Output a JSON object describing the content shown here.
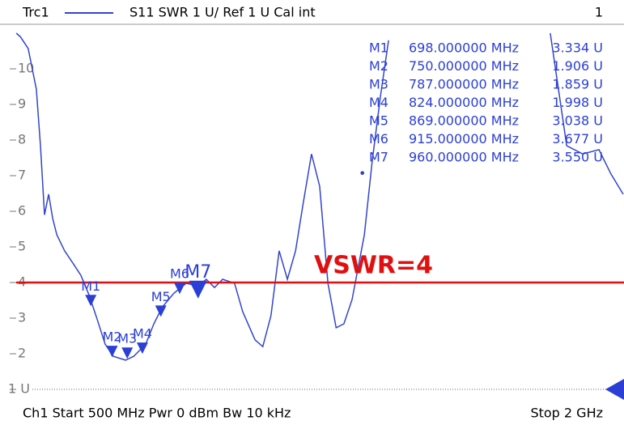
{
  "chart_data": {
    "type": "line",
    "header": {
      "trace": "Trc1",
      "description": "S11  SWR  1 U/ Ref 1 U  Cal int",
      "channel": "1"
    },
    "footer": {
      "left": "Ch1  Start  500 MHz  Pwr  0 dBm  Bw  10 kHz",
      "right": "Stop  2 GHz"
    },
    "xlim": [
      500,
      2000
    ],
    "ylim": [
      1,
      11
    ],
    "yticks": [
      {
        "value": 1,
        "label": "1 U"
      },
      2,
      3,
      4,
      5,
      6,
      7,
      8,
      9,
      10
    ],
    "series": [
      {
        "name": "Trc1",
        "color": "#3344cc",
        "x": [
          516,
          526,
          545,
          565,
          575,
          585,
          595,
          605,
          615,
          634,
          654,
          674,
          694,
          714,
          733,
          753,
          783,
          803,
          832,
          852,
          872,
          901,
          931,
          960,
          980,
          1000,
          1020,
          1049,
          1069,
          1099,
          1118,
          1138,
          1158,
          1178,
          1198,
          1217,
          1237,
          1257,
          1277,
          1297,
          1316,
          1336,
          1366,
          1385,
          1405,
          1425,
          1600,
          1820,
          1840,
          1860,
          1899,
          1939,
          1968,
          1998
        ],
        "values": [
          11,
          10.9,
          10.57,
          9.43,
          7.84,
          5.9,
          6.48,
          5.8,
          5.34,
          4.89,
          4.55,
          4.2,
          3.64,
          2.95,
          2.27,
          1.93,
          1.82,
          1.93,
          2.27,
          2.84,
          3.3,
          3.7,
          3.98,
          3.9,
          4.09,
          3.86,
          4.09,
          3.98,
          3.18,
          2.39,
          2.2,
          3.07,
          4.89,
          4.09,
          4.89,
          6.25,
          7.61,
          6.7,
          3.98,
          2.73,
          2.84,
          3.52,
          5.34,
          7.39,
          9.2,
          10.8,
          null,
          11,
          9.43,
          7.84,
          7.61,
          7.73,
          7.05,
          6.48
        ]
      }
    ],
    "markers": {
      "color": "#2b3fd6",
      "names": [
        "M1",
        "M2",
        "M3",
        "M4",
        "M5",
        "M6",
        "M7"
      ],
      "x": [
        698,
        750,
        787,
        824,
        869,
        915,
        960
      ],
      "x_labels": [
        "698.000000 MHz",
        "750.000000 MHz",
        "787.000000 MHz",
        "824.000000 MHz",
        "869.000000 MHz",
        "915.000000 MHz",
        "960.000000 MHz"
      ],
      "values": [
        3.334,
        1.906,
        1.859,
        1.998,
        3.038,
        3.677,
        3.55
      ],
      "value_labels": [
        "3.334 U",
        "1.906 U",
        "1.859 U",
        "1.998 U",
        "3.038 U",
        "3.677 U",
        "3.550 U"
      ],
      "active": 6
    },
    "annotations": [
      {
        "text": "VSWR=4",
        "value": 4,
        "color": "#e01010"
      }
    ]
  }
}
